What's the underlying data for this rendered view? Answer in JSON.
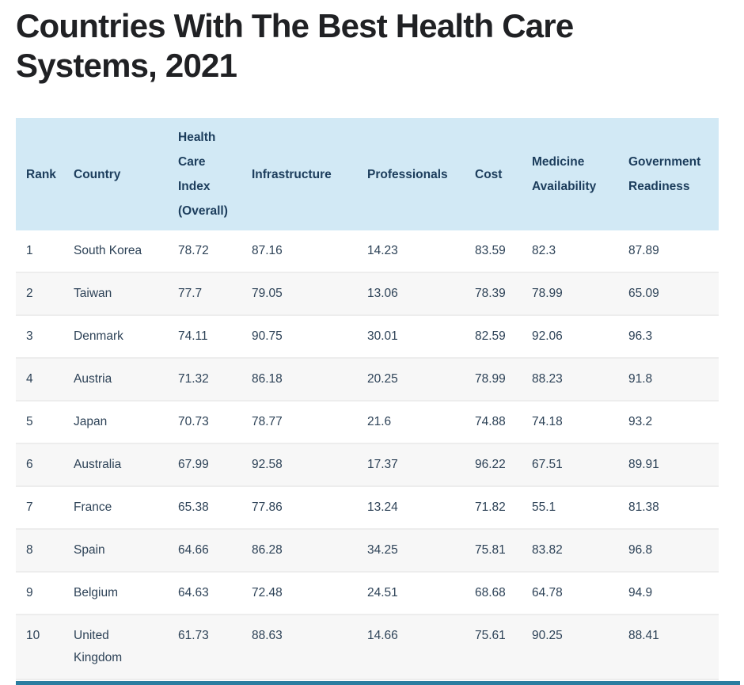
{
  "title": "Countries With The Best Health Care Systems, 2021",
  "table": {
    "columns": [
      "Rank",
      "Country",
      "Health Care Index (Overall)",
      "Infrastructure",
      "Professionals",
      "Cost",
      "Medicine Availability",
      "Government Readiness"
    ],
    "rows": [
      [
        "1",
        "South Korea",
        "78.72",
        "87.16",
        "14.23",
        "83.59",
        "82.3",
        "87.89"
      ],
      [
        "2",
        "Taiwan",
        "77.7",
        "79.05",
        "13.06",
        "78.39",
        "78.99",
        "65.09"
      ],
      [
        "3",
        "Denmark",
        "74.11",
        "90.75",
        "30.01",
        "82.59",
        "92.06",
        "96.3"
      ],
      [
        "4",
        "Austria",
        "71.32",
        "86.18",
        "20.25",
        "78.99",
        "88.23",
        "91.8"
      ],
      [
        "5",
        "Japan",
        "70.73",
        "78.77",
        "21.6",
        "74.88",
        "74.18",
        "93.2"
      ],
      [
        "6",
        "Australia",
        "67.99",
        "92.58",
        "17.37",
        "96.22",
        "67.51",
        "89.91"
      ],
      [
        "7",
        "France",
        "65.38",
        "77.86",
        "13.24",
        "71.82",
        "55.1",
        "81.38"
      ],
      [
        "8",
        "Spain",
        "64.66",
        "86.28",
        "34.25",
        "75.81",
        "83.82",
        "96.8"
      ],
      [
        "9",
        "Belgium",
        "64.63",
        "72.48",
        "24.51",
        "68.68",
        "64.78",
        "94.9"
      ],
      [
        "10",
        "United Kingdom",
        "61.73",
        "88.63",
        "14.66",
        "75.61",
        "90.25",
        "88.41"
      ]
    ]
  },
  "chart_data": {
    "type": "table",
    "title": "Countries With The Best Health Care Systems, 2021",
    "columns": [
      "Rank",
      "Country",
      "Health Care Index (Overall)",
      "Infrastructure",
      "Professionals",
      "Cost",
      "Medicine Availability",
      "Government Readiness"
    ],
    "rows": [
      [
        1,
        "South Korea",
        78.72,
        87.16,
        14.23,
        83.59,
        82.3,
        87.89
      ],
      [
        2,
        "Taiwan",
        77.7,
        79.05,
        13.06,
        78.39,
        78.99,
        65.09
      ],
      [
        3,
        "Denmark",
        74.11,
        90.75,
        30.01,
        82.59,
        92.06,
        96.3
      ],
      [
        4,
        "Austria",
        71.32,
        86.18,
        20.25,
        78.99,
        88.23,
        91.8
      ],
      [
        5,
        "Japan",
        70.73,
        78.77,
        21.6,
        74.88,
        74.18,
        93.2
      ],
      [
        6,
        "Australia",
        67.99,
        92.58,
        17.37,
        96.22,
        67.51,
        89.91
      ],
      [
        7,
        "France",
        65.38,
        77.86,
        13.24,
        71.82,
        55.1,
        81.38
      ],
      [
        8,
        "Spain",
        64.66,
        86.28,
        34.25,
        75.81,
        83.82,
        96.8
      ],
      [
        9,
        "Belgium",
        64.63,
        72.48,
        24.51,
        68.68,
        64.78,
        94.9
      ],
      [
        10,
        "United Kingdom",
        61.73,
        88.63,
        14.66,
        75.61,
        90.25,
        88.41
      ]
    ]
  },
  "colors": {
    "header_bg": "#d2e9f5",
    "header_text": "#1c3d5c",
    "body_text": "#2d4257",
    "alt_row_bg": "#f7f7f7",
    "row_border": "#ededed",
    "title_text": "#202124",
    "bottom_bar": "#2a7da0"
  }
}
